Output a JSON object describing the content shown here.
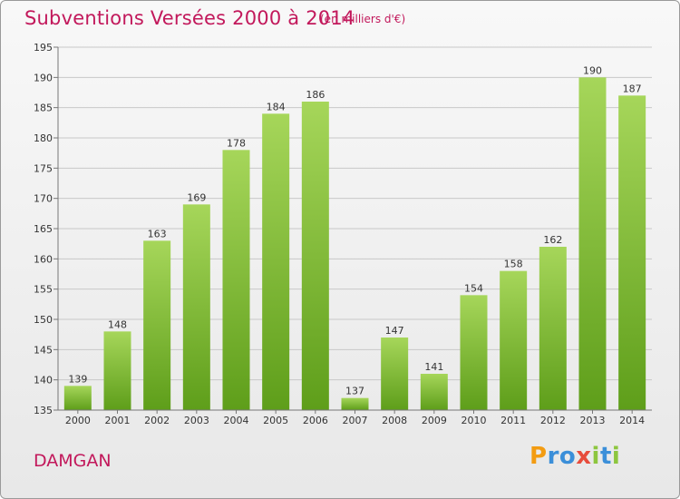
{
  "header": {
    "title": "Subventions Versées 2000 à 2014",
    "subtitle": "(en milliers d'€)"
  },
  "footer": {
    "commune": "DAMGAN",
    "logo_letters": [
      "P",
      "r",
      "o",
      "x",
      "i",
      "t",
      "i"
    ],
    "logo_colors": [
      "#f39c12",
      "#3b8fd9",
      "#3b8fd9",
      "#e74c3c",
      "#8dc63f",
      "#3b8fd9",
      "#8dc63f"
    ]
  },
  "chart_data": {
    "type": "bar",
    "title": "Subventions Versées 2000 à 2014",
    "subtitle": "(en milliers d'€)",
    "categories": [
      "2000",
      "2001",
      "2002",
      "2003",
      "2004",
      "2005",
      "2006",
      "2007",
      "2008",
      "2009",
      "2010",
      "2011",
      "2012",
      "2013",
      "2014"
    ],
    "values": [
      139,
      148,
      163,
      169,
      178,
      184,
      186,
      137,
      147,
      141,
      154,
      158,
      162,
      190,
      187
    ],
    "data_labels": [
      "139",
      "148",
      "163",
      "169",
      "178",
      "184",
      "186",
      "137",
      "147",
      "141",
      "154",
      "158",
      "162",
      "190",
      "187"
    ],
    "yticks": [
      "135",
      "140",
      "145",
      "150",
      "155",
      "160",
      "165",
      "170",
      "175",
      "180",
      "185",
      "190",
      "195"
    ],
    "ylim": [
      135,
      195
    ],
    "grid": true,
    "bar_color_top": "#a6d65a",
    "bar_color_bottom": "#5e9e1a",
    "grid_color": "#c8c8c8"
  }
}
